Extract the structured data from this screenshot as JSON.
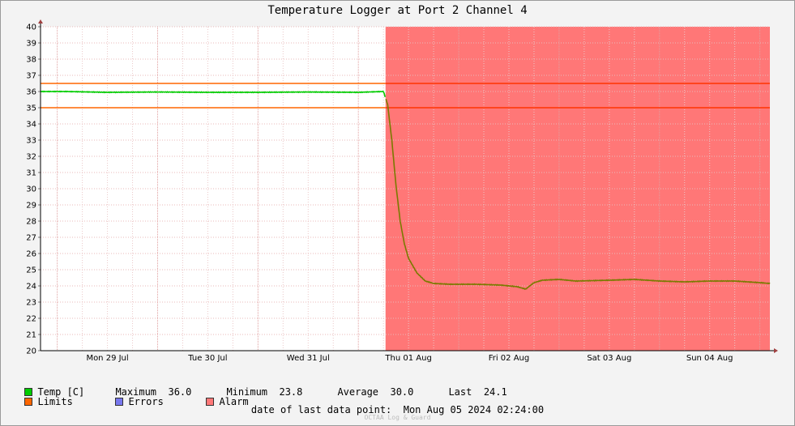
{
  "chart_data": {
    "type": "line",
    "title": "Temperature Logger at Port 2 Channel 4",
    "xlabel": "",
    "ylabel": "",
    "ylim": [
      20,
      40
    ],
    "yticks": [
      20,
      21,
      22,
      23,
      24,
      25,
      26,
      27,
      28,
      29,
      30,
      31,
      32,
      33,
      34,
      35,
      36,
      37,
      38,
      39,
      40
    ],
    "xlim": [
      "2024-07-28 20:00",
      "2024-08-05 02:24"
    ],
    "x_tick_labels": [
      {
        "x": "2024-07-29 12:00",
        "label": "Mon 29 Jul"
      },
      {
        "x": "2024-07-30 12:00",
        "label": "Tue 30 Jul"
      },
      {
        "x": "2024-07-31 12:00",
        "label": "Wed 31 Jul"
      },
      {
        "x": "2024-08-01 12:00",
        "label": "Thu 01 Aug"
      },
      {
        "x": "2024-08-02 12:00",
        "label": "Fri 02 Aug"
      },
      {
        "x": "2024-08-03 12:00",
        "label": "Sat 03 Aug"
      },
      {
        "x": "2024-08-04 12:00",
        "label": "Sun 04 Aug"
      }
    ],
    "grid": true,
    "series": [
      {
        "name": "Temp [C]",
        "color": "#00cc00",
        "alarm_color": "#7a7a00",
        "points": [
          [
            "2024-07-28 20:00",
            36.0
          ],
          [
            "2024-07-29 02:00",
            36.0
          ],
          [
            "2024-07-29 12:00",
            35.95
          ],
          [
            "2024-07-30 00:00",
            35.97
          ],
          [
            "2024-07-30 12:00",
            35.95
          ],
          [
            "2024-07-31 00:00",
            35.95
          ],
          [
            "2024-07-31 12:00",
            35.97
          ],
          [
            "2024-08-01 00:00",
            35.95
          ],
          [
            "2024-08-01 06:00",
            36.0
          ],
          [
            "2024-08-01 07:00",
            35.2
          ],
          [
            "2024-08-01 08:00",
            33.0
          ],
          [
            "2024-08-01 09:00",
            30.2
          ],
          [
            "2024-08-01 10:00",
            28.0
          ],
          [
            "2024-08-01 11:00",
            26.6
          ],
          [
            "2024-08-01 12:00",
            25.7
          ],
          [
            "2024-08-01 14:00",
            24.8
          ],
          [
            "2024-08-01 16:00",
            24.3
          ],
          [
            "2024-08-01 18:00",
            24.15
          ],
          [
            "2024-08-01 22:00",
            24.1
          ],
          [
            "2024-08-02 04:00",
            24.1
          ],
          [
            "2024-08-02 10:00",
            24.05
          ],
          [
            "2024-08-02 14:00",
            23.95
          ],
          [
            "2024-08-02 16:00",
            23.8
          ],
          [
            "2024-08-02 18:00",
            24.2
          ],
          [
            "2024-08-02 20:00",
            24.35
          ],
          [
            "2024-08-03 00:00",
            24.4
          ],
          [
            "2024-08-03 04:00",
            24.3
          ],
          [
            "2024-08-03 12:00",
            24.35
          ],
          [
            "2024-08-03 18:00",
            24.4
          ],
          [
            "2024-08-04 00:00",
            24.3
          ],
          [
            "2024-08-04 06:00",
            24.25
          ],
          [
            "2024-08-04 12:00",
            24.3
          ],
          [
            "2024-08-04 18:00",
            24.3
          ],
          [
            "2024-08-05 00:00",
            24.2
          ],
          [
            "2024-08-05 02:24",
            24.15
          ]
        ]
      }
    ],
    "limits": {
      "name": "Limits",
      "values": [
        35.0,
        36.5
      ],
      "color": "#ff6600",
      "alarm_color": "#ff3300"
    },
    "alarm": {
      "name": "Alarm",
      "start": "2024-08-01 06:30",
      "end": "2024-08-05 02:24",
      "color": "#ff7777"
    },
    "errors": {
      "name": "Errors",
      "color": "#7777ee"
    },
    "legend_position": "bottom-left"
  },
  "legend": {
    "temp_label": "Temp [C]",
    "limits_label": "Limits",
    "errors_label": "Errors",
    "alarm_label": "Alarm",
    "maximum_label": "Maximum",
    "maximum_value": "36.0",
    "minimum_label": "Minimum",
    "minimum_value": "23.8",
    "average_label": "Average",
    "average_value": "30.0",
    "last_label": "Last",
    "last_value": "24.1"
  },
  "footer": {
    "last_point_label": "date of last data point:",
    "last_point_value": "Mon Aug 05 2024 02:24:00",
    "watermark": "OCTAA Log & Guard"
  }
}
